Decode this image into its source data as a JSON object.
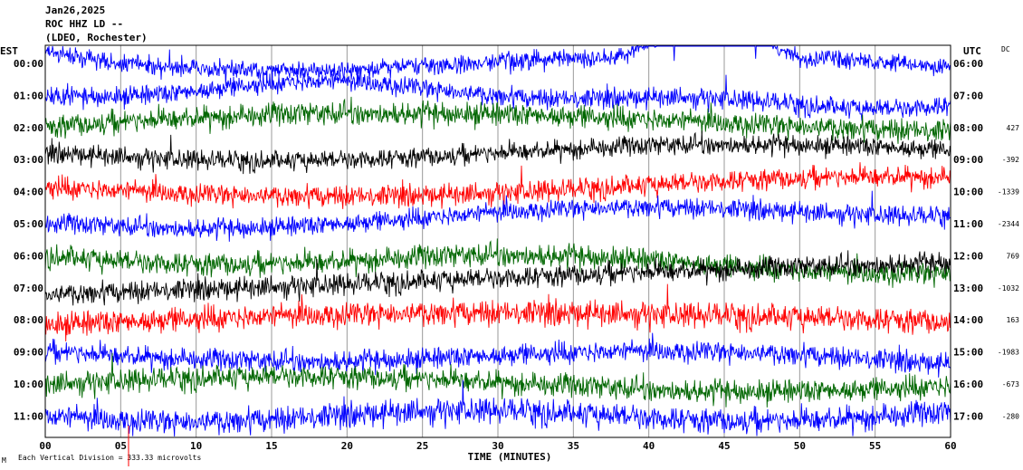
{
  "header": {
    "date": "Jan26,2025",
    "station": "ROC HHZ LD --",
    "network": "(LDEO, Rochester)"
  },
  "labels": {
    "left_tz": "EST",
    "right_tz": "UTC",
    "dc_header": "DC",
    "scale_note": "Each Vertical Division = 333.33 microvolts",
    "scale_mark": "M"
  },
  "chart_data": {
    "type": "helicorder",
    "xlabel": "TIME (MINUTES)",
    "xlim": [
      0,
      60
    ],
    "x_ticks": [
      "00",
      "05",
      "10",
      "15",
      "20",
      "25",
      "30",
      "35",
      "40",
      "45",
      "50",
      "55",
      "60"
    ],
    "colors": {
      "blue": "#0000ff",
      "green": "#006600",
      "black": "#000000",
      "red": "#ff0000"
    },
    "rows": [
      {
        "est": "00:00",
        "utc": "06:00",
        "dc": "",
        "color": "blue"
      },
      {
        "est": "01:00",
        "utc": "07:00",
        "dc": "",
        "color": "blue"
      },
      {
        "est": "02:00",
        "utc": "08:00",
        "dc": "427",
        "color": "green"
      },
      {
        "est": "03:00",
        "utc": "09:00",
        "dc": "-392",
        "color": "black"
      },
      {
        "est": "04:00",
        "utc": "10:00",
        "dc": "-1339",
        "color": "red"
      },
      {
        "est": "05:00",
        "utc": "11:00",
        "dc": "-2344",
        "color": "blue"
      },
      {
        "est": "06:00",
        "utc": "12:00",
        "dc": "769",
        "color": "green"
      },
      {
        "est": "07:00",
        "utc": "13:00",
        "dc": "-1032",
        "color": "black"
      },
      {
        "est": "08:00",
        "utc": "14:00",
        "dc": "163",
        "color": "red"
      },
      {
        "est": "09:00",
        "utc": "15:00",
        "dc": "-1983",
        "color": "blue"
      },
      {
        "est": "10:00",
        "utc": "16:00",
        "dc": "-673",
        "color": "green"
      },
      {
        "est": "11:00",
        "utc": "17:00",
        "dc": "-280",
        "color": "blue"
      }
    ]
  }
}
